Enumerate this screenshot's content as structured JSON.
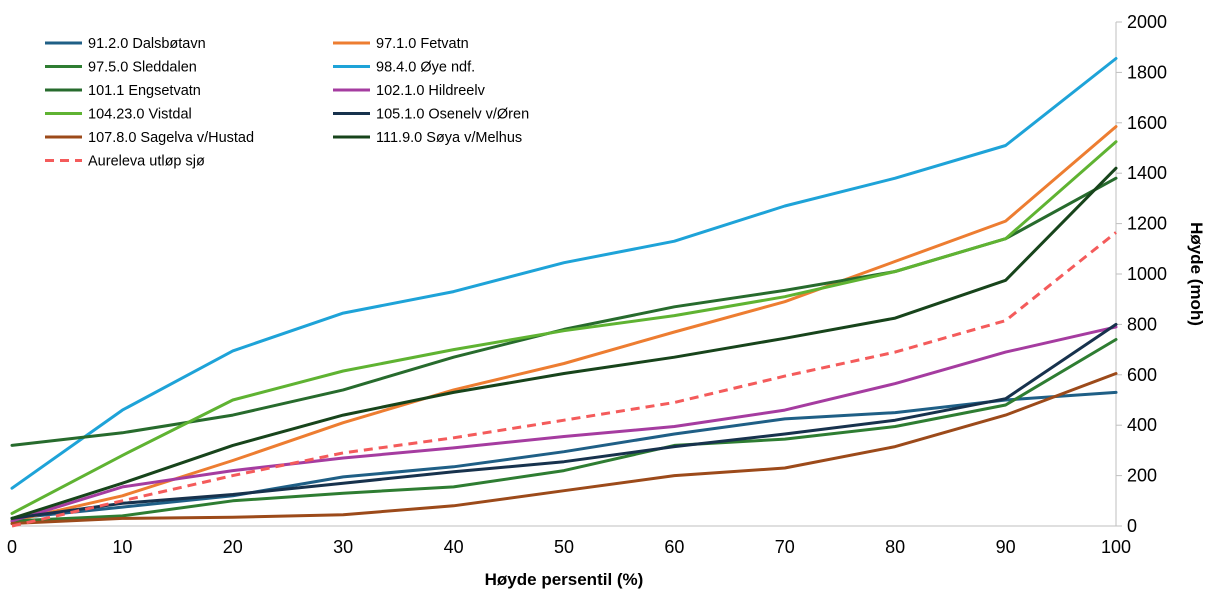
{
  "chart_data": {
    "type": "line",
    "xlabel": "Høyde persentil (%)",
    "ylabel": "Høyde (moh)",
    "xlim": [
      0,
      100
    ],
    "ylim": [
      0,
      2000
    ],
    "x_ticks": [
      0,
      10,
      20,
      30,
      40,
      50,
      60,
      70,
      80,
      90,
      100
    ],
    "y_ticks": [
      0,
      200,
      400,
      600,
      800,
      1000,
      1200,
      1400,
      1600,
      1800,
      2000
    ],
    "y_axis_side": "right",
    "grid": false,
    "legend_position": "top-left",
    "x": [
      0,
      10,
      20,
      30,
      40,
      50,
      60,
      70,
      80,
      90,
      100
    ],
    "series": [
      {
        "name": "91.2.0 Dalsbøtavn",
        "color": "#1f5f86",
        "dash": false,
        "values": [
          30,
          75,
          120,
          195,
          235,
          295,
          365,
          425,
          450,
          500,
          530
        ]
      },
      {
        "name": "97.1.0 Fetvatn",
        "color": "#ed7d31",
        "dash": false,
        "values": [
          20,
          120,
          260,
          410,
          540,
          645,
          770,
          890,
          1050,
          1210,
          1585
        ]
      },
      {
        "name": "97.5.0 Sleddalen",
        "color": "#2e7d32",
        "dash": false,
        "values": [
          20,
          40,
          100,
          130,
          155,
          220,
          320,
          345,
          395,
          480,
          740
        ]
      },
      {
        "name": "98.4.0 Øye ndf.",
        "color": "#1ea3d8",
        "dash": false,
        "values": [
          150,
          460,
          695,
          845,
          930,
          1045,
          1130,
          1270,
          1380,
          1510,
          1855
        ]
      },
      {
        "name": "101.1 Engsetvatn",
        "color": "#276b2d",
        "dash": false,
        "values": [
          320,
          370,
          440,
          540,
          670,
          780,
          870,
          935,
          1010,
          1140,
          1380
        ]
      },
      {
        "name": "102.1.0 Hildreelv",
        "color": "#a53ca0",
        "dash": false,
        "values": [
          20,
          155,
          220,
          270,
          310,
          355,
          395,
          460,
          565,
          690,
          790
        ]
      },
      {
        "name": "104.23.0 Vistdal",
        "color": "#5fb332",
        "dash": false,
        "values": [
          50,
          280,
          500,
          615,
          700,
          775,
          835,
          910,
          1010,
          1140,
          1525
        ]
      },
      {
        "name": "105.1.0 Osenelv v/Øren",
        "color": "#17324d",
        "dash": false,
        "values": [
          30,
          90,
          125,
          170,
          215,
          255,
          315,
          365,
          420,
          505,
          800
        ]
      },
      {
        "name": "107.8.0 Sagelva v/Hustad",
        "color": "#9c4a1a",
        "dash": false,
        "values": [
          10,
          30,
          35,
          45,
          80,
          140,
          200,
          230,
          315,
          440,
          605
        ]
      },
      {
        "name": "111.9.0 Søya v/Melhus",
        "color": "#17441b",
        "dash": false,
        "values": [
          30,
          170,
          320,
          440,
          530,
          605,
          670,
          745,
          825,
          975,
          1420
        ]
      },
      {
        "name": "Aureleva utløp sjø",
        "color": "#f45b5b",
        "dash": true,
        "values": [
          0,
          100,
          200,
          290,
          350,
          420,
          490,
          595,
          690,
          815,
          1165
        ]
      }
    ]
  }
}
